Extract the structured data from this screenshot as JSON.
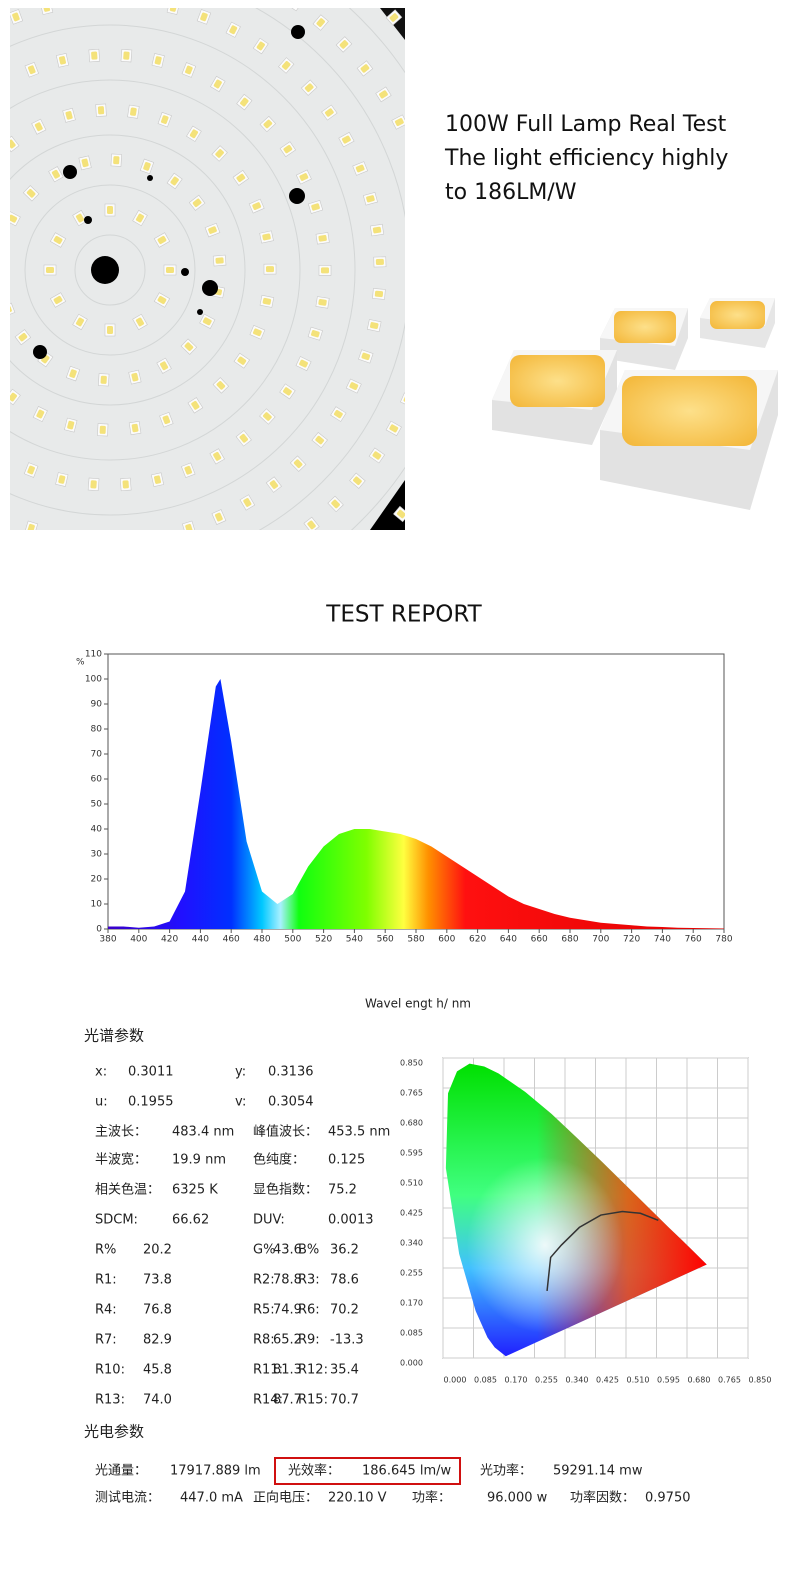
{
  "intro": {
    "lines": [
      "100W Full Lamp Real Test",
      "The light efficiency highly",
      "to 186LM/W"
    ]
  },
  "report_title": "TEST REPORT",
  "spectrum": {
    "type": "area",
    "y_unit": "%",
    "x_label": "Wavel engt h/ nm",
    "xlim": [
      380,
      780
    ],
    "ylim": [
      0,
      110
    ],
    "xticks": [
      380,
      400,
      420,
      440,
      460,
      480,
      500,
      520,
      540,
      560,
      580,
      600,
      620,
      640,
      660,
      680,
      700,
      720,
      740,
      760,
      780
    ],
    "yticks": [
      0,
      10,
      20,
      30,
      40,
      50,
      60,
      70,
      80,
      90,
      100,
      110
    ],
    "x": [
      380,
      390,
      400,
      410,
      420,
      430,
      440,
      450,
      453,
      460,
      470,
      480,
      490,
      500,
      510,
      520,
      530,
      540,
      550,
      560,
      570,
      580,
      590,
      600,
      610,
      620,
      630,
      640,
      650,
      660,
      670,
      680,
      690,
      700,
      710,
      720,
      730,
      740,
      750,
      760,
      770,
      780
    ],
    "values": [
      1,
      1,
      0.5,
      1,
      3,
      15,
      55,
      97,
      100,
      75,
      35,
      15,
      10,
      14,
      25,
      33,
      38,
      40,
      40,
      39,
      38,
      36,
      33,
      29,
      25,
      21,
      17,
      13,
      10,
      8,
      6,
      4.5,
      3.5,
      2.5,
      2,
      1.5,
      1,
      0.8,
      0.5,
      0.4,
      0.3,
      0.2
    ]
  },
  "cie": {
    "xlim": [
      0,
      0.85
    ],
    "ylim": [
      0,
      0.85
    ],
    "xticks": [
      {
        "value": 0,
        "label": "0.000"
      },
      {
        "value": 0.085,
        "label": "0.085"
      },
      {
        "value": 0.17,
        "label": "0.170"
      },
      {
        "value": 0.255,
        "label": "0.255"
      },
      {
        "value": 0.34,
        "label": "0.340"
      },
      {
        "value": 0.425,
        "label": "0.425"
      },
      {
        "value": 0.51,
        "label": "0.510"
      },
      {
        "value": 0.595,
        "label": "0.595"
      },
      {
        "value": 0.68,
        "label": "0.680"
      },
      {
        "value": 0.765,
        "label": "0.765"
      },
      {
        "value": 0.85,
        "label": "0.850"
      }
    ],
    "yticks": [
      {
        "value": 0,
        "label": "0.000"
      },
      {
        "value": 0.085,
        "label": "0.085"
      },
      {
        "value": 0.17,
        "label": "0.170"
      },
      {
        "value": 0.255,
        "label": "0.255"
      },
      {
        "value": 0.34,
        "label": "0.340"
      },
      {
        "value": 0.425,
        "label": "0.425"
      },
      {
        "value": 0.51,
        "label": "0.510"
      },
      {
        "value": 0.595,
        "label": "0.595"
      },
      {
        "value": 0.68,
        "label": "0.680"
      },
      {
        "value": 0.765,
        "label": "0.765"
      },
      {
        "value": 0.85,
        "label": "0.850"
      }
    ]
  },
  "spectral_params": {
    "title": "光谱参数",
    "rows": [
      [
        "x:",
        "0.3011",
        "y:",
        "0.3136"
      ],
      [
        "u:",
        "0.1955",
        "v:",
        "0.3054"
      ],
      [
        "主波长：",
        "483.4 nm",
        "峰值波长：",
        "453.5 nm"
      ],
      [
        "半波宽：",
        "19.9 nm",
        "色纯度：",
        "0.125"
      ],
      [
        "相关色温：",
        "6325 K",
        "显色指数：",
        "75.2"
      ],
      [
        "SDCM:",
        "66.62",
        "DUV:",
        "0.0013"
      ],
      [
        "R%",
        "20.2",
        "G%",
        "43.6",
        "B%",
        "36.2"
      ],
      [
        "R1:",
        "73.8",
        "R2:",
        "78.8",
        "R3:",
        "78.6"
      ],
      [
        "R4:",
        "76.8",
        "R5:",
        "74.9",
        "R6:",
        "70.2"
      ],
      [
        "R7:",
        "82.9",
        "R8:",
        "65.2",
        "R9:",
        "-13.3"
      ],
      [
        "R10:",
        "45.8",
        "R11:",
        "81.3",
        "R12:",
        "35.4"
      ],
      [
        "R13:",
        "74.0",
        "R14:",
        "87.7",
        "R15:",
        "70.7"
      ]
    ]
  },
  "photo_params": {
    "title": "光电参数",
    "rows": [
      [
        "光通量：",
        "17917.889 lm",
        "光效率：",
        "186.645 lm/w",
        "光功率：",
        "59291.14 mw"
      ],
      [
        "测试电流：",
        "447.0 mA",
        "正向电压：",
        "220.10 V",
        "功率：",
        "96.000 w",
        "功率因数：",
        "0.9750"
      ]
    ]
  }
}
